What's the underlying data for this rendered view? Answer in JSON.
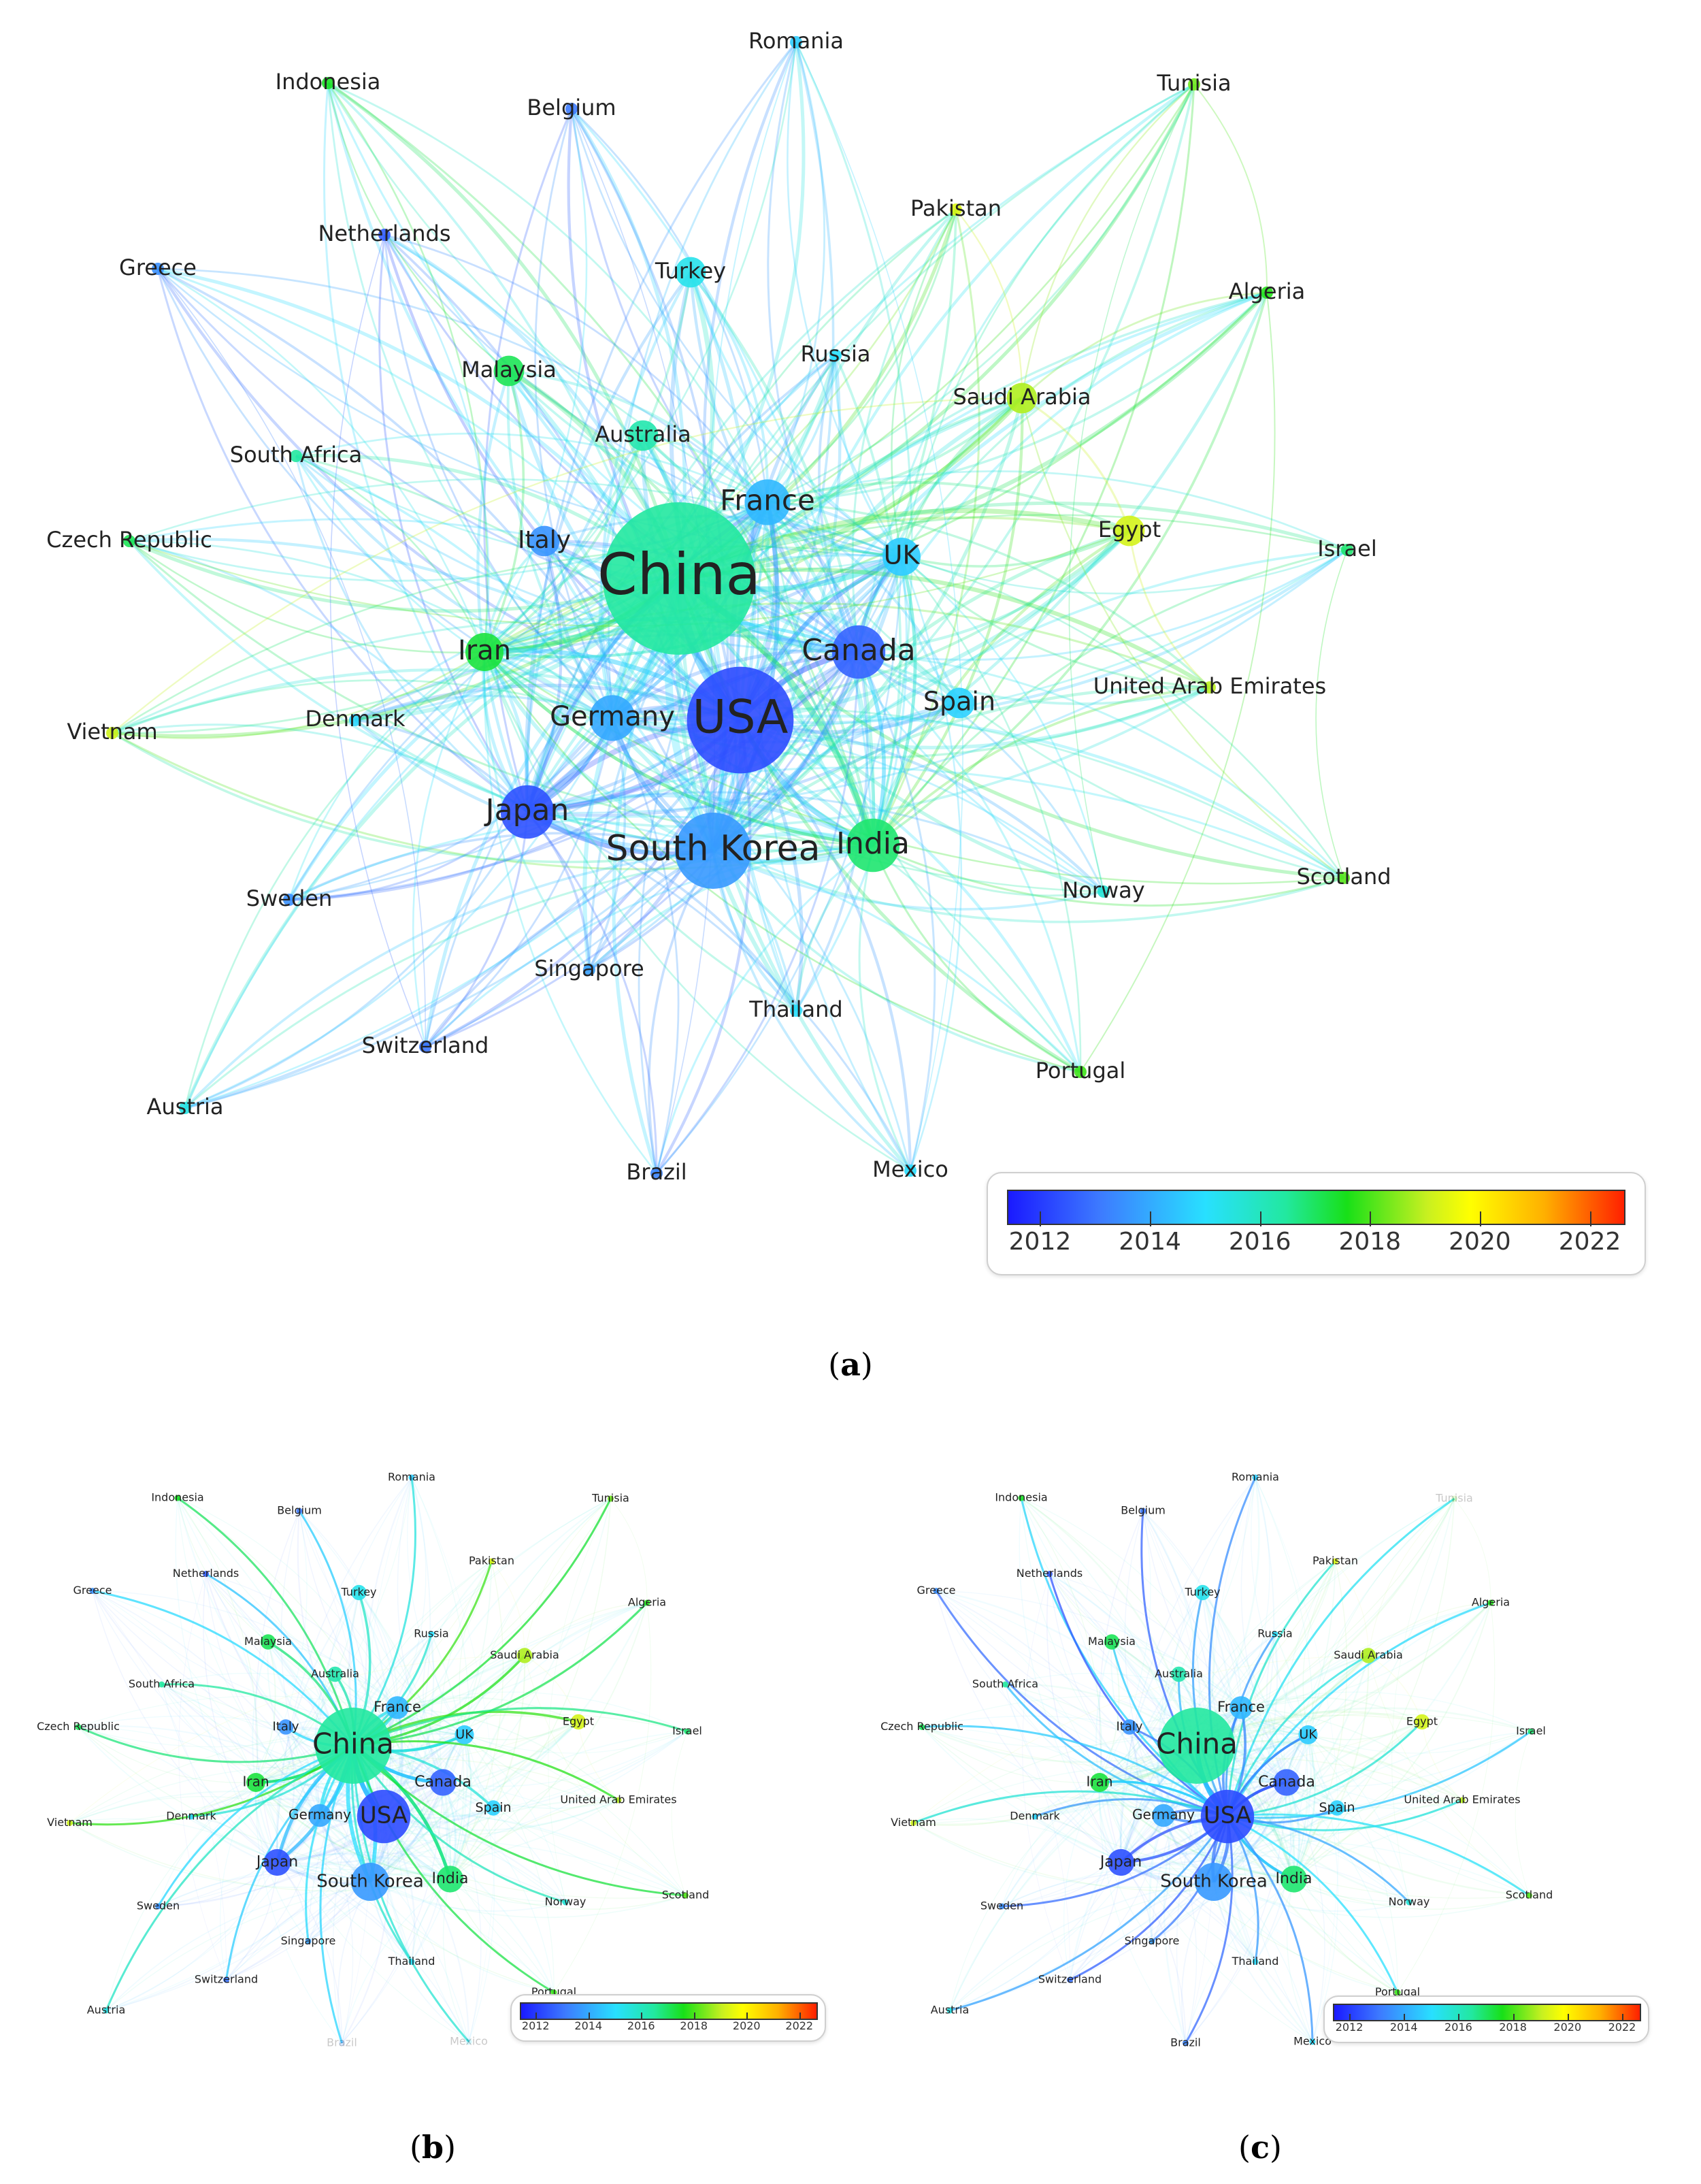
{
  "nodes": [
    {
      "id": "Romania",
      "label": "Romania",
      "year": 2014.6,
      "size": 1
    },
    {
      "id": "Indonesia",
      "label": "Indonesia",
      "year": 2017.4,
      "size": 1
    },
    {
      "id": "Belgium",
      "label": "Belgium",
      "year": 2013.0,
      "size": 1
    },
    {
      "id": "Tunisia",
      "label": "Tunisia",
      "year": 2018.2,
      "size": 1
    },
    {
      "id": "Netherlands",
      "label": "Netherlands",
      "year": 2012.5,
      "size": 1
    },
    {
      "id": "Pakistan",
      "label": "Pakistan",
      "year": 2019.2,
      "size": 1
    },
    {
      "id": "Greece",
      "label": "Greece",
      "year": 2013.4,
      "size": 1
    },
    {
      "id": "Turkey",
      "label": "Turkey",
      "year": 2015.3,
      "size": 2
    },
    {
      "id": "Algeria",
      "label": "Algeria",
      "year": 2017.6,
      "size": 1.5
    },
    {
      "id": "Russia",
      "label": "Russia",
      "year": 2015.0,
      "size": 1.5
    },
    {
      "id": "Malaysia",
      "label": "Malaysia",
      "year": 2017.0,
      "size": 2
    },
    {
      "id": "Saudi Arabia",
      "label": "Saudi Arabia",
      "year": 2018.7,
      "size": 2
    },
    {
      "id": "Australia",
      "label": "Australia",
      "year": 2016.2,
      "size": 2
    },
    {
      "id": "South Africa",
      "label": "South Africa",
      "year": 2016.4,
      "size": 1
    },
    {
      "id": "France",
      "label": "France",
      "year": 2014.2,
      "size": 3
    },
    {
      "id": "Czech Republic",
      "label": "Czech Republic",
      "year": 2017.0,
      "size": 1
    },
    {
      "id": "Italy",
      "label": "Italy",
      "year": 2013.5,
      "size": 2
    },
    {
      "id": "Egypt",
      "label": "Egypt",
      "year": 2019.1,
      "size": 2
    },
    {
      "id": "Israel",
      "label": "Israel",
      "year": 2016.8,
      "size": 1
    },
    {
      "id": "China",
      "label": "China",
      "year": 2016.4,
      "size": 10
    },
    {
      "id": "UK",
      "label": "UK",
      "year": 2014.6,
      "size": 2.5
    },
    {
      "id": "Iran",
      "label": "Iran",
      "year": 2017.2,
      "size": 2.5
    },
    {
      "id": "Canada",
      "label": "Canada",
      "year": 2012.6,
      "size": 3.5
    },
    {
      "id": "Denmark",
      "label": "Denmark",
      "year": 2014.8,
      "size": 1.5
    },
    {
      "id": "Vietnam",
      "label": "Vietnam",
      "year": 2019.0,
      "size": 1
    },
    {
      "id": "Germany",
      "label": "Germany",
      "year": 2013.9,
      "size": 3
    },
    {
      "id": "USA",
      "label": "USA",
      "year": 2012.2,
      "size": 7
    },
    {
      "id": "Spain",
      "label": "Spain",
      "year": 2014.7,
      "size": 2
    },
    {
      "id": "United Arab Emirates",
      "label": "United Arab Emirates",
      "year": 2018.8,
      "size": 1.5
    },
    {
      "id": "Japan",
      "label": "Japan",
      "year": 2012.3,
      "size": 3.5
    },
    {
      "id": "South Korea",
      "label": "South Korea",
      "year": 2013.6,
      "size": 5
    },
    {
      "id": "India",
      "label": "India",
      "year": 2016.8,
      "size": 3.5
    },
    {
      "id": "Scotland",
      "label": "Scotland",
      "year": 2018.0,
      "size": 1
    },
    {
      "id": "Norway",
      "label": "Norway",
      "year": 2015.6,
      "size": 1
    },
    {
      "id": "Sweden",
      "label": "Sweden",
      "year": 2013.4,
      "size": 1
    },
    {
      "id": "Singapore",
      "label": "Singapore",
      "year": 2013.7,
      "size": 1.5
    },
    {
      "id": "Thailand",
      "label": "Thailand",
      "year": 2015.0,
      "size": 1.5
    },
    {
      "id": "Switzerland",
      "label": "Switzerland",
      "year": 2012.9,
      "size": 1
    },
    {
      "id": "Portugal",
      "label": "Portugal",
      "year": 2017.8,
      "size": 1
    },
    {
      "id": "Austria",
      "label": "Austria",
      "year": 2015.4,
      "size": 1
    },
    {
      "id": "Brazil",
      "label": "Brazil",
      "year": 2013.2,
      "size": 1
    },
    {
      "id": "Mexico",
      "label": "Mexico",
      "year": 2014.9,
      "size": 1
    }
  ],
  "legend": {
    "ticks": [
      "2012",
      "2014",
      "2016",
      "2018",
      "2020",
      "2022"
    ],
    "min": 2011.4,
    "max": 2022.6
  },
  "captions": {
    "a": "a",
    "b": "b",
    "c": "c"
  },
  "panel_c_hub": "USA",
  "panel_b_hub": "China",
  "faded_in_b": [
    "Brazil",
    "Mexico"
  ],
  "faded_in_c": [
    "Tunisia"
  ]
}
